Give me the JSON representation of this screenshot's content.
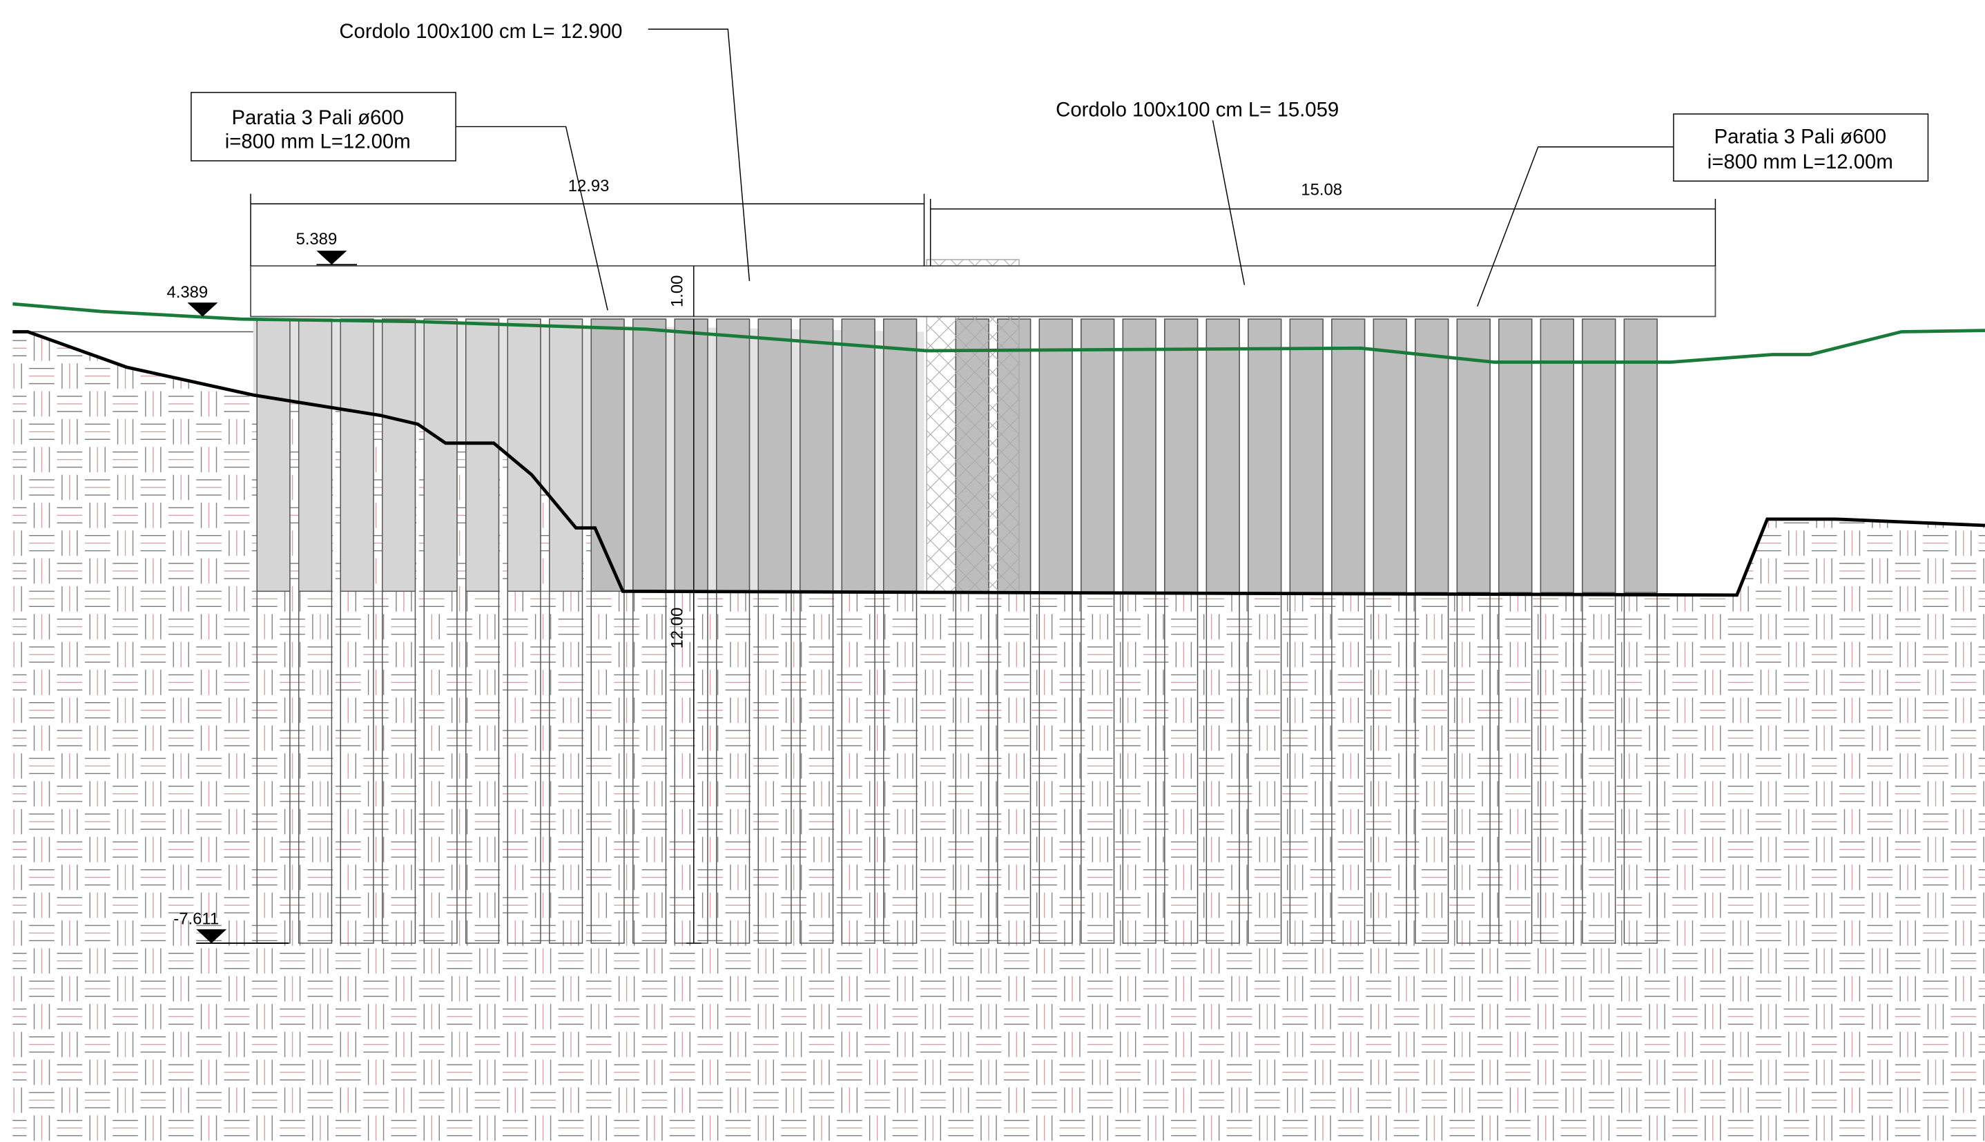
{
  "callouts": {
    "cap_left": "Cordolo 100x100 cm L= 12.900",
    "cap_right": "Cordolo 100x100 cm L= 15.059",
    "wall_left": {
      "line1": "Paratia 3 Pali ø600",
      "line2": "i=800 mm L=12.00m"
    },
    "wall_right": {
      "line1": "Paratia 3 Pali ø600",
      "line2": "i=800 mm L=12.00m"
    }
  },
  "dimensions": {
    "left_length": "12.93",
    "right_length": "15.08",
    "cap_height": "1.00",
    "pile_length": "12.00"
  },
  "levels": {
    "top": "5.389",
    "ground": "4.389",
    "bottom": "-7.611"
  }
}
